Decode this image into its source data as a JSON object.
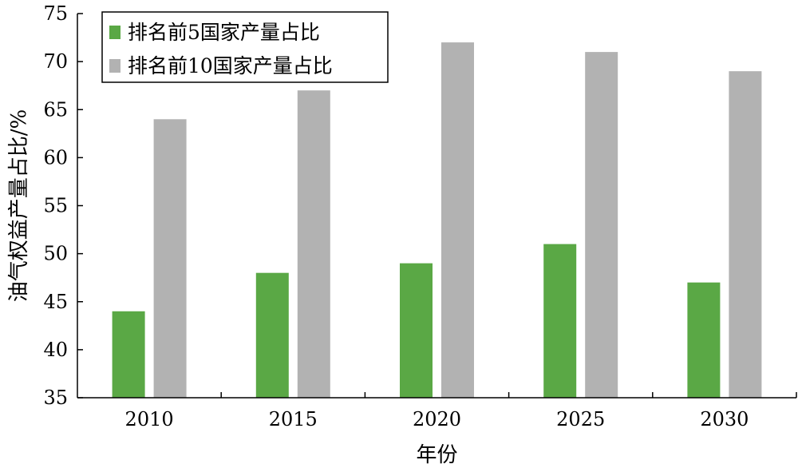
{
  "chart_data": {
    "type": "bar",
    "title": "",
    "xlabel": "年份",
    "ylabel": "油气权益产量占比/%",
    "categories": [
      "2010",
      "2015",
      "2020",
      "2025",
      "2030"
    ],
    "ylim": [
      35,
      75
    ],
    "yticks": [
      35,
      40,
      45,
      50,
      55,
      60,
      65,
      70,
      75
    ],
    "grid": false,
    "legend_position": "top-left",
    "series": [
      {
        "name": "排名前5国家产量占比",
        "color": "#5aa845",
        "values": [
          44,
          48,
          49,
          51,
          47
        ]
      },
      {
        "name": "排名前10国家产量占比",
        "color": "#b2b2b2",
        "values": [
          64,
          67,
          72,
          71,
          69
        ]
      }
    ]
  }
}
